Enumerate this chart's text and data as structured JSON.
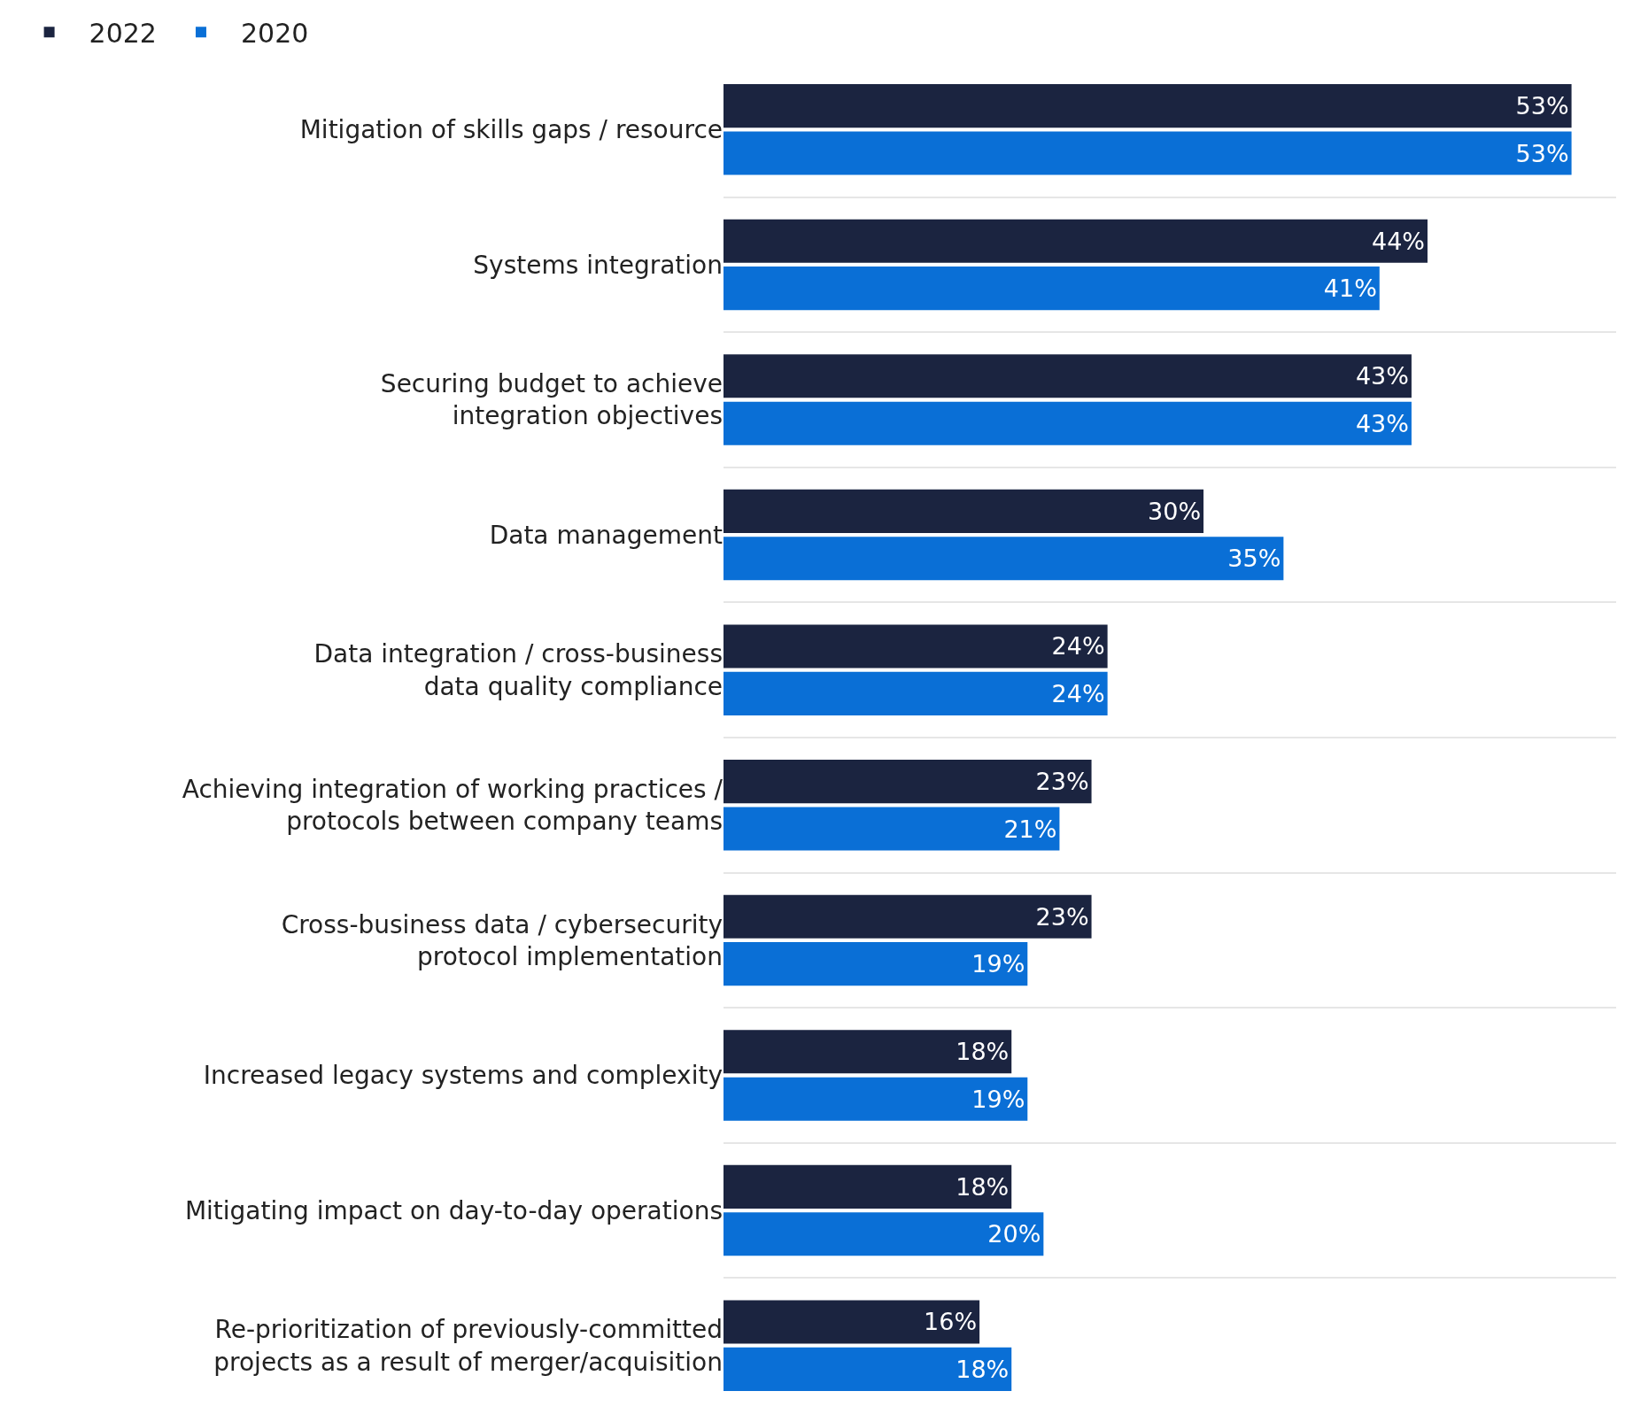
{
  "chart_data": {
    "type": "bar",
    "orientation": "horizontal",
    "grid": "y",
    "legend": "top left",
    "tick_labels": "y",
    "categories": [
      "Mitigation of skills gaps / resource",
      "Systems integration",
      "Securing budget to achieve\nintegration objectives",
      "Data management",
      "Data integration / cross-business\ndata quality compliance",
      "Achieving integration of working practices /\nprotocols between company teams",
      "Cross-business data / cybersecurity\nprotocol implementation",
      "Increased legacy systems and complexity",
      "Mitigating impact on day-to-day operations",
      "Re-prioritization of previously-committed\nprojects as a result of merger/acquisition"
    ],
    "series": [
      {
        "name": "2022",
        "color": "#1b2440",
        "values": [
          53,
          44,
          43,
          30,
          24,
          23,
          23,
          18,
          18,
          16
        ],
        "value_labels": [
          "53%",
          "44%",
          "43%",
          "30%",
          "24%",
          "23%",
          "23%",
          "18%",
          "18%",
          "16%"
        ]
      },
      {
        "name": "2020",
        "color": "#0a6fd6",
        "values": [
          53,
          41,
          43,
          35,
          24,
          21,
          19,
          19,
          20,
          18
        ],
        "value_labels": [
          "53%",
          "41%",
          "43%",
          "35%",
          "24%",
          "21%",
          "19%",
          "19%",
          "20%",
          "18%"
        ]
      }
    ]
  }
}
